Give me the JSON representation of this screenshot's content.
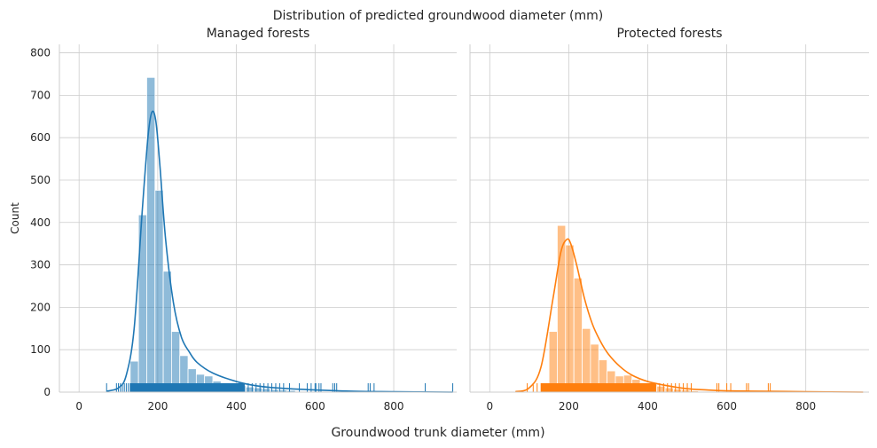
{
  "figure": {
    "suptitle": "Distribution of predicted groundwood diameter (mm)",
    "xlabel": "Groundwood trunk diameter (mm)",
    "ylabel": "Count"
  },
  "chart_data": [
    {
      "type": "bar",
      "title": "Managed forests",
      "xlim": [
        -50,
        960
      ],
      "ylim": [
        0,
        820
      ],
      "xticks": [
        0,
        200,
        400,
        600,
        800
      ],
      "yticks": [
        0,
        100,
        200,
        300,
        400,
        500,
        600,
        700,
        800
      ],
      "grid": true,
      "color": "#1f77b4",
      "bins": [
        {
          "x0": 130,
          "x1": 151,
          "count": 73
        },
        {
          "x0": 151,
          "x1": 172,
          "count": 418
        },
        {
          "x0": 172,
          "x1": 193,
          "count": 742
        },
        {
          "x0": 193,
          "x1": 214,
          "count": 476
        },
        {
          "x0": 214,
          "x1": 235,
          "count": 285
        },
        {
          "x0": 235,
          "x1": 256,
          "count": 143
        },
        {
          "x0": 256,
          "x1": 277,
          "count": 86
        },
        {
          "x0": 277,
          "x1": 298,
          "count": 55
        },
        {
          "x0": 298,
          "x1": 319,
          "count": 42
        },
        {
          "x0": 319,
          "x1": 340,
          "count": 38
        },
        {
          "x0": 340,
          "x1": 361,
          "count": 26
        },
        {
          "x0": 361,
          "x1": 382,
          "count": 22
        },
        {
          "x0": 382,
          "x1": 403,
          "count": 17
        },
        {
          "x0": 403,
          "x1": 424,
          "count": 15
        },
        {
          "x0": 424,
          "x1": 445,
          "count": 12
        },
        {
          "x0": 445,
          "x1": 466,
          "count": 10
        },
        {
          "x0": 466,
          "x1": 487,
          "count": 8
        },
        {
          "x0": 487,
          "x1": 508,
          "count": 6
        },
        {
          "x0": 508,
          "x1": 529,
          "count": 5
        },
        {
          "x0": 529,
          "x1": 550,
          "count": 4
        }
      ],
      "kde": {
        "x": [
          70,
          100,
          120,
          140,
          160,
          175,
          185,
          195,
          205,
          220,
          240,
          260,
          280,
          300,
          340,
          400,
          450,
          500,
          600,
          700,
          800,
          950
        ],
        "y": [
          2,
          10,
          40,
          150,
          420,
          600,
          660,
          640,
          540,
          360,
          210,
          130,
          95,
          70,
          45,
          25,
          15,
          10,
          5,
          2,
          1,
          0
        ]
      },
      "rug": [
        70,
        95,
        100,
        105,
        110,
        115,
        120,
        125,
        130,
        135,
        140,
        145,
        150,
        160,
        170,
        180,
        190,
        200,
        210,
        220,
        230,
        240,
        250,
        260,
        270,
        280,
        290,
        300,
        310,
        320,
        330,
        340,
        350,
        360,
        370,
        380,
        390,
        400,
        410,
        420,
        430,
        440,
        450,
        460,
        470,
        480,
        490,
        500,
        510,
        520,
        535,
        560,
        580,
        590,
        600,
        602,
        610,
        615,
        645,
        650,
        655,
        735,
        740,
        750,
        880,
        950
      ]
    },
    {
      "type": "bar",
      "title": "Protected forests",
      "xlim": [
        -50,
        960
      ],
      "ylim": [
        0,
        820
      ],
      "xticks": [
        0,
        200,
        400,
        600,
        800
      ],
      "yticks": [
        0,
        100,
        200,
        300,
        400,
        500,
        600,
        700,
        800
      ],
      "grid": true,
      "color": "#ff7f0e",
      "bins": [
        {
          "x0": 150,
          "x1": 171,
          "count": 143
        },
        {
          "x0": 171,
          "x1": 192,
          "count": 393
        },
        {
          "x0": 192,
          "x1": 213,
          "count": 347
        },
        {
          "x0": 213,
          "x1": 234,
          "count": 269
        },
        {
          "x0": 234,
          "x1": 255,
          "count": 150
        },
        {
          "x0": 255,
          "x1": 276,
          "count": 113
        },
        {
          "x0": 276,
          "x1": 297,
          "count": 76
        },
        {
          "x0": 297,
          "x1": 318,
          "count": 50
        },
        {
          "x0": 318,
          "x1": 339,
          "count": 38
        },
        {
          "x0": 339,
          "x1": 360,
          "count": 40
        },
        {
          "x0": 360,
          "x1": 381,
          "count": 30
        },
        {
          "x0": 381,
          "x1": 402,
          "count": 22
        },
        {
          "x0": 402,
          "x1": 423,
          "count": 18
        },
        {
          "x0": 423,
          "x1": 444,
          "count": 14
        },
        {
          "x0": 444,
          "x1": 465,
          "count": 10
        },
        {
          "x0": 465,
          "x1": 486,
          "count": 7
        },
        {
          "x0": 486,
          "x1": 507,
          "count": 5
        },
        {
          "x0": 507,
          "x1": 528,
          "count": 3
        }
      ],
      "kde": {
        "x": [
          65,
          100,
          130,
          160,
          180,
          195,
          205,
          220,
          240,
          260,
          280,
          300,
          330,
          360,
          400,
          450,
          500,
          550,
          600,
          700,
          800,
          945
        ],
        "y": [
          1,
          10,
          60,
          220,
          330,
          360,
          350,
          300,
          220,
          160,
          120,
          90,
          60,
          40,
          25,
          15,
          8,
          5,
          3,
          2,
          1,
          0
        ]
      },
      "rug": [
        95,
        110,
        120,
        130,
        140,
        145,
        150,
        160,
        170,
        180,
        190,
        200,
        210,
        220,
        230,
        240,
        250,
        260,
        270,
        280,
        290,
        300,
        310,
        320,
        330,
        340,
        350,
        360,
        370,
        380,
        390,
        400,
        410,
        420,
        430,
        440,
        450,
        460,
        470,
        480,
        490,
        500,
        510,
        575,
        580,
        600,
        610,
        650,
        655,
        705,
        710
      ]
    }
  ]
}
